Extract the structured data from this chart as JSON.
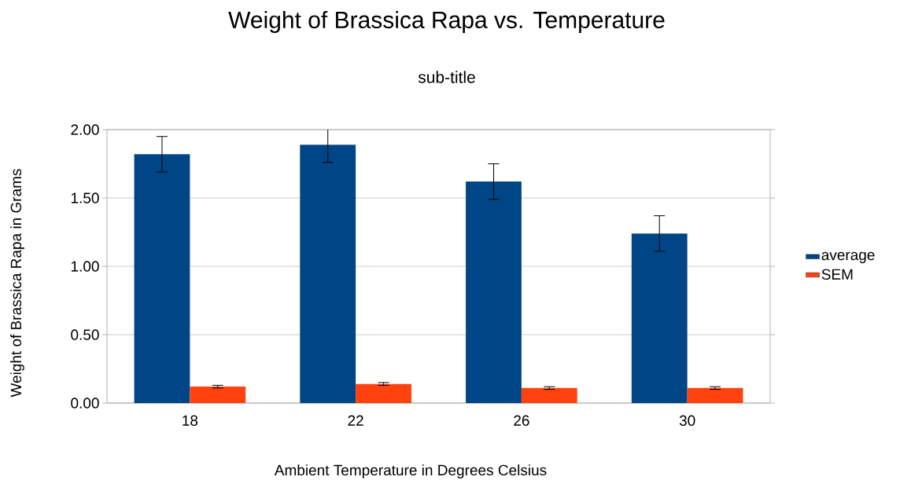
{
  "chart_data": {
    "type": "bar",
    "title": "Weight of Brassica Rapa vs. Temperature",
    "subtitle": "sub-title",
    "xlabel": "Ambient Temperature in Degrees Celsius",
    "ylabel": "Weight of Brassica Rapa in Grams",
    "categories": [
      "18",
      "22",
      "26",
      "30"
    ],
    "series": [
      {
        "name": "average",
        "color": "#004586",
        "values": [
          1.82,
          1.89,
          1.62,
          1.24
        ],
        "errors": [
          0.13,
          0.13,
          0.13,
          0.13
        ]
      },
      {
        "name": "SEM",
        "color": "#ff420e",
        "values": [
          0.12,
          0.14,
          0.11,
          0.11
        ],
        "errors": [
          0.01,
          0.01,
          0.01,
          0.01
        ]
      }
    ],
    "ylim": [
      0,
      2
    ],
    "yticks": [
      {
        "value": 0,
        "label": "0.00"
      },
      {
        "value": 0.5,
        "label": "0.50"
      },
      {
        "value": 1,
        "label": "1.00"
      },
      {
        "value": 1.5,
        "label": "1.50"
      },
      {
        "value": 2,
        "label": "2.00"
      }
    ],
    "grid": "y",
    "legend": "right"
  }
}
